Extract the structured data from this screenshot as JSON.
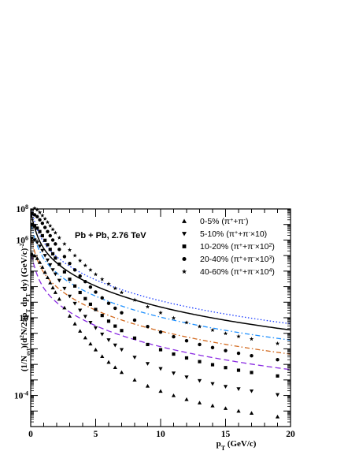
{
  "chart_data": {
    "type": "scatter",
    "title": "",
    "annotation": "Pb + Pb, 2.76 TeV",
    "xlabel": "p_T (GeV/c)",
    "ylabel": "(1/N_evt)(d²N/2πp_T dp_T dy) (GeV/c)⁻²",
    "xlim": [
      0,
      20
    ],
    "ylim_log10": [
      -6,
      8
    ],
    "y_scale": "log",
    "x_ticks": [
      {
        "v": 5,
        "label": "5"
      },
      {
        "v": 10,
        "label": "10"
      },
      {
        "v": 15,
        "label": "15"
      },
      {
        "v": 20,
        "label": "20"
      }
    ],
    "y_ticks": [
      {
        "exp": -4,
        "base": "10",
        "sup": "-4"
      },
      {
        "exp": 1,
        "base": "10",
        "sup": ""
      },
      {
        "exp": 6,
        "base": "10",
        "sup": "6"
      },
      {
        "exp": 8,
        "base": "10",
        "sup": "8"
      }
    ],
    "legend_position": "top-right",
    "series": [
      {
        "name": "0-5% (π⁺+π⁻)",
        "legend_parts": [
          "0-5% (π",
          "+",
          "+π",
          "-",
          ")"
        ],
        "marker": "triangle-up",
        "fit_color": "#8a2be2",
        "fit_style": "long-dash",
        "A": 5.25,
        "B": 1.55,
        "C": 4.35,
        "D": 2.55,
        "x": [
          0.1,
          0.3,
          0.5,
          0.7,
          0.9,
          1.1,
          1.3,
          1.5,
          1.7,
          1.9,
          2.2,
          2.6,
          3.0,
          3.4,
          3.8,
          4.2,
          4.6,
          5.0,
          5.5,
          6.0,
          6.5,
          7.0,
          8.0,
          9.0,
          10.0,
          11.0,
          12.0,
          13.0,
          14.0,
          15.0,
          16.0,
          17.0,
          19.0
        ],
        "y": [
          130000.0,
          98000.0,
          66000.0,
          37000.0,
          18000.0,
          8500.0,
          3900.0,
          1800.0,
          860.0,
          430.0,
          160.0,
          44.0,
          13.0,
          4.1,
          1.4,
          0.52,
          0.21,
          0.088,
          0.033,
          0.014,
          0.0064,
          0.0031,
          0.001,
          0.00041,
          0.00019,
          0.0001,
          5.6e-05,
          3.4e-05,
          2.2e-05,
          1.5e-05,
          1e-05,
          7.4e-06,
          4.3e-06
        ]
      },
      {
        "name": "5-10% (π⁺+π⁻×10)",
        "legend_parts": [
          "5-10% (π",
          "+",
          "+π",
          "-",
          "×10)"
        ],
        "marker": "triangle-down",
        "fit_color": "#d2691e",
        "fit_style": "dash-dot",
        "A": 6.25,
        "B": 1.4,
        "C": 4.35,
        "D": 2.5,
        "x": [
          0.1,
          0.3,
          0.5,
          0.7,
          0.9,
          1.1,
          1.3,
          1.5,
          1.7,
          1.9,
          2.2,
          2.6,
          3.0,
          3.4,
          3.8,
          4.2,
          4.6,
          5.0,
          5.5,
          6.0,
          6.5,
          7.0,
          8.0,
          9.0,
          10.0,
          11.0,
          12.0,
          13.0,
          14.0,
          15.0,
          16.0,
          17.0,
          19.0
        ],
        "y": [
          1300000.0,
          990000.0,
          690000.0,
          400000.0,
          210000.0,
          100000.0,
          51000.0,
          25000.0,
          12000.0,
          6400.0,
          2500.0,
          760.0,
          240.0,
          82.0,
          30.0,
          12.0,
          4.9,
          2.2,
          0.86,
          0.37,
          0.17,
          0.087,
          0.028,
          0.011,
          0.0052,
          0.0027,
          0.0015,
          0.00088,
          0.00056,
          0.00037,
          0.00026,
          0.00019,
          0.00011
        ]
      },
      {
        "name": "10-20% (π⁺+π⁻×10²)",
        "legend_parts": [
          "10-20% (π",
          "+",
          "+π",
          "-",
          "×10",
          "2",
          ")"
        ],
        "marker": "square",
        "fit_color": "#1e90ff",
        "fit_style": "dash-dot",
        "A": 7.15,
        "B": 1.3,
        "C": 4.35,
        "D": 2.45,
        "x": [
          0.1,
          0.3,
          0.5,
          0.7,
          0.9,
          1.1,
          1.3,
          1.5,
          1.7,
          1.9,
          2.2,
          2.6,
          3.0,
          3.4,
          3.8,
          4.2,
          4.6,
          5.0,
          5.5,
          6.0,
          6.5,
          7.0,
          8.0,
          9.0,
          10.0,
          11.0,
          12.0,
          13.0,
          14.0,
          15.0,
          16.0,
          17.0,
          19.0
        ],
        "y": [
          10000000.0,
          8100000.0,
          5800000.0,
          3500000.0,
          1900000.0,
          960000.0,
          500000.0,
          250000.0,
          130000.0,
          69000.0,
          28000.0,
          9000.0,
          3000.0,
          1100.0,
          420.0,
          170.0,
          74.0,
          34.0,
          14.0,
          6.0,
          2.9,
          1.5,
          0.49,
          0.19,
          0.088,
          0.046,
          0.026,
          0.015,
          0.0095,
          0.0062,
          0.0042,
          0.003,
          0.0018
        ]
      },
      {
        "name": "20-40% (π⁺+π⁻×10³)",
        "legend_parts": [
          "20-40% (π",
          "+",
          "+π",
          "-",
          "×10",
          "3",
          ")"
        ],
        "marker": "circle",
        "fit_color": "#000000",
        "fit_style": "solid",
        "A": 7.8,
        "B": 1.15,
        "C": 4.35,
        "D": 2.4,
        "x": [
          0.1,
          0.3,
          0.5,
          0.7,
          0.9,
          1.1,
          1.3,
          1.5,
          1.7,
          1.9,
          2.2,
          2.6,
          3.0,
          3.4,
          3.8,
          4.2,
          4.6,
          5.0,
          5.5,
          6.0,
          6.5,
          7.0,
          8.0,
          9.0,
          10.0,
          11.0,
          12.0,
          13.0,
          14.0,
          15.0,
          16.0,
          17.0,
          19.0
        ],
        "y": [
          50000000.0,
          42000000.0,
          32000000.0,
          20000000.0,
          12000000.0,
          6500000.0,
          3500000.0,
          1900000.0,
          1000000.0,
          560000.0,
          250000.0,
          86000.0,
          31000.0,
          12000.0,
          4800.0,
          2100.0,
          940.0,
          450.0,
          190.0,
          85.0,
          41.0,
          21.0,
          7.0,
          2.7,
          1.2,
          0.6,
          0.33,
          0.19,
          0.12,
          0.077,
          0.052,
          0.036,
          0.02
        ]
      },
      {
        "name": "40-60% (π⁺+π⁻×10⁴)",
        "legend_parts": [
          "40-60% (π",
          "+",
          "+π",
          "-",
          "×10",
          "4",
          ")"
        ],
        "marker": "star",
        "fit_color": "#1a3cff",
        "fit_style": "dotted",
        "A": 8.2,
        "B": 1.0,
        "C": 4.35,
        "D": 2.35,
        "x": [
          0.1,
          0.3,
          0.5,
          0.7,
          0.9,
          1.1,
          1.3,
          1.5,
          1.7,
          1.9,
          2.2,
          2.6,
          3.0,
          3.4,
          3.8,
          4.2,
          4.6,
          5.0,
          5.5,
          6.0,
          6.5,
          7.0,
          8.0,
          9.0,
          10.0,
          11.0,
          12.0,
          13.0,
          14.0,
          15.0,
          16.0,
          17.0,
          19.0
        ],
        "y": [
          130000000.0,
          110000000.0,
          88000000.0,
          60000000.0,
          38000000.0,
          23000000.0,
          14000000.0,
          8200000.0,
          4800000.0,
          2900000.0,
          1400000.0,
          560000.0,
          230000.0,
          100000.0,
          47000.0,
          23000.0,
          12000.0,
          6200.0,
          3000.0,
          1500.0,
          780.0,
          420.0,
          140.0,
          51.0,
          21.0,
          9.6,
          4.9,
          2.7,
          1.6,
          0.97,
          0.63,
          0.43,
          0.22
        ]
      }
    ]
  }
}
